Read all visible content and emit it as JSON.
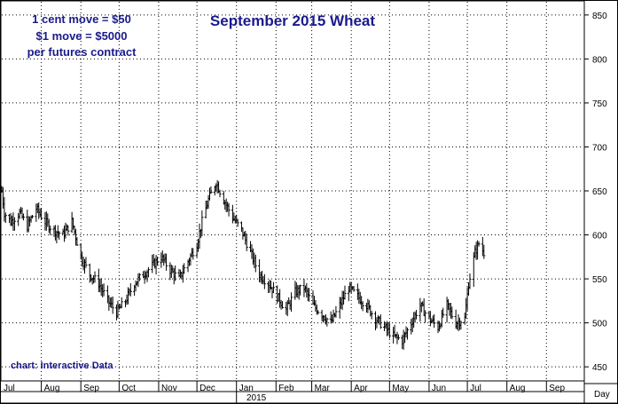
{
  "chart_data": {
    "type": "bar",
    "subtype": "ohlc",
    "title": "September 2015 Wheat",
    "notes": [
      "1 cent move = $50",
      "$1 move = $5000",
      "per futures contract"
    ],
    "credit": "chart: Interactive Data",
    "x_tick_labels": [
      "Jul",
      "Aug",
      "Sep",
      "Oct",
      "Nov",
      "Dec",
      "Jan",
      "Feb",
      "Mar",
      "Apr",
      "May",
      "Jun",
      "Jul",
      "Aug",
      "Sep"
    ],
    "year_label": "2015",
    "y_ticks": [
      450,
      500,
      550,
      600,
      650,
      700,
      750,
      800,
      850
    ],
    "ylim": [
      435,
      865
    ],
    "period_label": "Day",
    "grid": true,
    "x_start": "2014-07-01",
    "x_end": "2015-09-30",
    "anchors": [
      [
        "2014-07-01",
        650
      ],
      [
        "2014-07-03",
        625
      ],
      [
        "2014-07-08",
        615
      ],
      [
        "2014-07-15",
        625
      ],
      [
        "2014-07-21",
        610
      ],
      [
        "2014-07-28",
        630
      ],
      [
        "2014-08-04",
        615
      ],
      [
        "2014-08-11",
        605
      ],
      [
        "2014-08-18",
        600
      ],
      [
        "2014-08-25",
        615
      ],
      [
        "2014-09-01",
        575
      ],
      [
        "2014-09-08",
        555
      ],
      [
        "2014-09-15",
        545
      ],
      [
        "2014-09-22",
        525
      ],
      [
        "2014-09-29",
        512
      ],
      [
        "2014-10-06",
        525
      ],
      [
        "2014-10-13",
        545
      ],
      [
        "2014-10-20",
        555
      ],
      [
        "2014-10-27",
        565
      ],
      [
        "2014-11-03",
        575
      ],
      [
        "2014-11-10",
        560
      ],
      [
        "2014-11-17",
        550
      ],
      [
        "2014-11-24",
        570
      ],
      [
        "2014-12-01",
        590
      ],
      [
        "2014-12-05",
        615
      ],
      [
        "2014-12-10",
        640
      ],
      [
        "2014-12-16",
        660
      ],
      [
        "2014-12-22",
        640
      ],
      [
        "2014-12-29",
        620
      ],
      [
        "2015-01-05",
        605
      ],
      [
        "2015-01-12",
        580
      ],
      [
        "2015-01-19",
        555
      ],
      [
        "2015-01-26",
        545
      ],
      [
        "2015-02-02",
        530
      ],
      [
        "2015-02-09",
        515
      ],
      [
        "2015-02-16",
        535
      ],
      [
        "2015-02-23",
        540
      ],
      [
        "2015-03-02",
        520
      ],
      [
        "2015-03-09",
        510
      ],
      [
        "2015-03-16",
        500
      ],
      [
        "2015-03-23",
        520
      ],
      [
        "2015-03-30",
        540
      ],
      [
        "2015-04-06",
        530
      ],
      [
        "2015-04-13",
        520
      ],
      [
        "2015-04-20",
        505
      ],
      [
        "2015-04-27",
        495
      ],
      [
        "2015-05-04",
        485
      ],
      [
        "2015-05-11",
        480
      ],
      [
        "2015-05-18",
        500
      ],
      [
        "2015-05-25",
        520
      ],
      [
        "2015-06-01",
        505
      ],
      [
        "2015-06-08",
        495
      ],
      [
        "2015-06-15",
        520
      ],
      [
        "2015-06-22",
        500
      ],
      [
        "2015-06-29",
        505
      ],
      [
        "2015-07-02",
        545
      ],
      [
        "2015-07-07",
        580
      ],
      [
        "2015-07-10",
        590
      ],
      [
        "2015-07-14",
        580
      ]
    ]
  }
}
